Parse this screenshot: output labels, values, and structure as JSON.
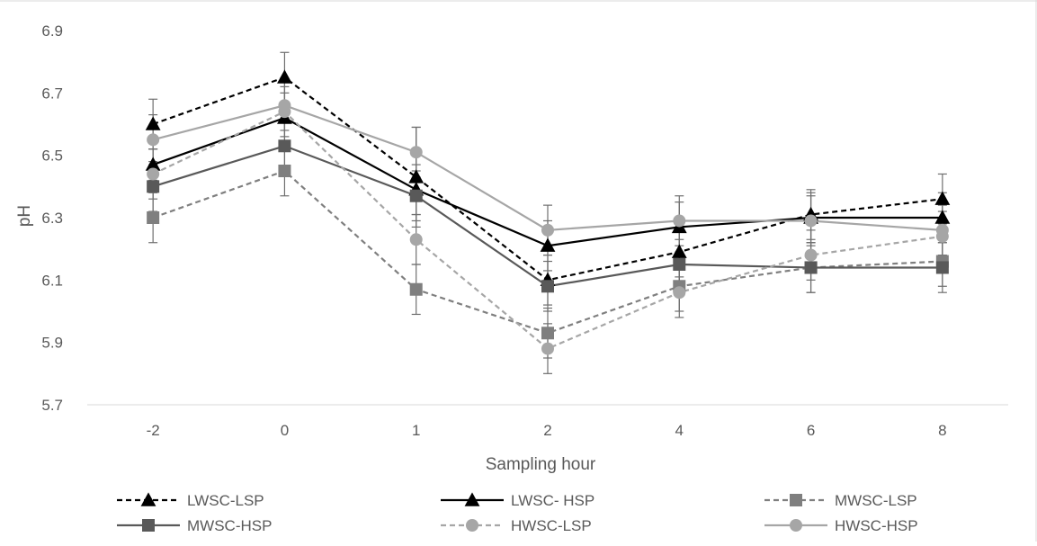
{
  "chart_data": {
    "type": "line",
    "title": "",
    "xlabel": "Sampling hour",
    "ylabel": "pH",
    "categories": [
      "-2",
      "0",
      "1",
      "2",
      "4",
      "6",
      "8"
    ],
    "ylim": [
      5.7,
      6.9
    ],
    "yticks": [
      "5.7",
      "5.9",
      "6.1",
      "6.3",
      "6.5",
      "6.7",
      "6.9"
    ],
    "grid": false,
    "legend_position": "bottom",
    "series": [
      {
        "name": "LWSC-LSP",
        "values": [
          6.6,
          6.75,
          6.43,
          6.1,
          6.19,
          6.31,
          6.36
        ],
        "error": [
          0.08,
          0.08,
          0.16,
          0.08,
          0.08,
          0.08,
          0.08
        ],
        "color": "#000000",
        "dashed": true,
        "marker": "triangle",
        "marker_color": "#000000"
      },
      {
        "name": "LWSC- HSP",
        "values": [
          6.47,
          6.62,
          6.39,
          6.21,
          6.27,
          6.3,
          6.3
        ],
        "error": [
          0.05,
          0.08,
          0.08,
          0.08,
          0.08,
          0.08,
          0.08
        ],
        "color": "#000000",
        "dashed": false,
        "marker": "triangle",
        "marker_color": "#000000"
      },
      {
        "name": "MWSC-LSP",
        "values": [
          6.3,
          6.45,
          6.07,
          5.93,
          6.08,
          6.14,
          6.16
        ],
        "error": [
          0.08,
          0.08,
          0.08,
          0.08,
          0.08,
          0.08,
          0.08
        ],
        "color": "#7f7f7f",
        "dashed": true,
        "marker": "square",
        "marker_color": "#7f7f7f"
      },
      {
        "name": "MWSC-HSP",
        "values": [
          6.4,
          6.53,
          6.37,
          6.08,
          6.15,
          6.14,
          6.14
        ],
        "error": [
          0.08,
          0.08,
          0.08,
          0.08,
          0.08,
          0.08,
          0.08
        ],
        "color": "#595959",
        "dashed": false,
        "marker": "square",
        "marker_color": "#595959"
      },
      {
        "name": "HWSC-LSP",
        "values": [
          6.44,
          6.64,
          6.23,
          5.88,
          6.06,
          6.18,
          6.24
        ],
        "error": [
          0.08,
          0.08,
          0.08,
          0.08,
          0.08,
          0.08,
          0.08
        ],
        "color": "#a6a6a6",
        "dashed": true,
        "marker": "circle",
        "marker_color": "#a6a6a6"
      },
      {
        "name": "HWSC-HSP",
        "values": [
          6.55,
          6.66,
          6.51,
          6.26,
          6.29,
          6.29,
          6.26
        ],
        "error": [
          0.08,
          0.08,
          0.08,
          0.08,
          0.08,
          0.08,
          0.08
        ],
        "color": "#a6a6a6",
        "dashed": false,
        "marker": "circle",
        "marker_color": "#a6a6a6"
      }
    ]
  }
}
